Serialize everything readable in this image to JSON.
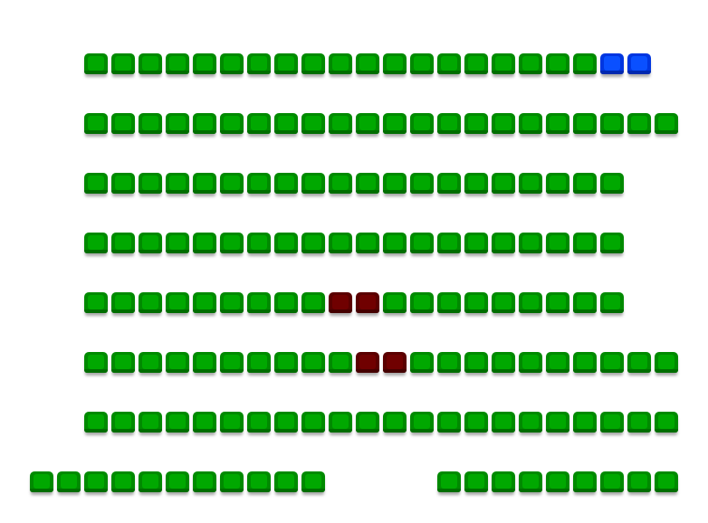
{
  "colors": {
    "available": {
      "edge": "#008a00",
      "face": "#00a800",
      "base": "#006e00"
    },
    "selected": {
      "edge": "#0036e0",
      "face": "#0a50ff",
      "base": "#0028b0"
    },
    "occupied": {
      "edge": "#5a0000",
      "face": "#700000",
      "base": "#450000"
    }
  },
  "seat_map": {
    "rows": [
      [
        null,
        null,
        "available",
        "available",
        "available",
        "available",
        "available",
        "available",
        "available",
        "available",
        "available",
        "available",
        "available",
        "available",
        "available",
        "available",
        "available",
        "available",
        "available",
        "available",
        "available",
        "selected",
        "selected"
      ],
      [
        null,
        null,
        "available",
        "available",
        "available",
        "available",
        "available",
        "available",
        "available",
        "available",
        "available",
        "available",
        "available",
        "available",
        "available",
        "available",
        "available",
        "available",
        "available",
        "available",
        "available",
        "available",
        "available",
        "available"
      ],
      [
        null,
        null,
        "available",
        "available",
        "available",
        "available",
        "available",
        "available",
        "available",
        "available",
        "available",
        "available",
        "available",
        "available",
        "available",
        "available",
        "available",
        "available",
        "available",
        "available",
        "available",
        "available"
      ],
      [
        null,
        null,
        "available",
        "available",
        "available",
        "available",
        "available",
        "available",
        "available",
        "available",
        "available",
        "available",
        "available",
        "available",
        "available",
        "available",
        "available",
        "available",
        "available",
        "available",
        "available",
        "available"
      ],
      [
        null,
        null,
        "available",
        "available",
        "available",
        "available",
        "available",
        "available",
        "available",
        "available",
        "available",
        "occupied",
        "occupied",
        "available",
        "available",
        "available",
        "available",
        "available",
        "available",
        "available",
        "available",
        "available"
      ],
      [
        null,
        null,
        "available",
        "available",
        "available",
        "available",
        "available",
        "available",
        "available",
        "available",
        "available",
        "available",
        "occupied",
        "occupied",
        "available",
        "available",
        "available",
        "available",
        "available",
        "available",
        "available",
        "available",
        "available",
        "available"
      ],
      [
        null,
        null,
        "available",
        "available",
        "available",
        "available",
        "available",
        "available",
        "available",
        "available",
        "available",
        "available",
        "available",
        "available",
        "available",
        "available",
        "available",
        "available",
        "available",
        "available",
        "available",
        "available",
        "available",
        "available"
      ],
      [
        "available",
        "available",
        "available",
        "available",
        "available",
        "available",
        "available",
        "available",
        "available",
        "available",
        "available",
        null,
        null,
        null,
        null,
        "available",
        "available",
        "available",
        "available",
        "available",
        "available",
        "available",
        "available",
        "available"
      ]
    ]
  }
}
